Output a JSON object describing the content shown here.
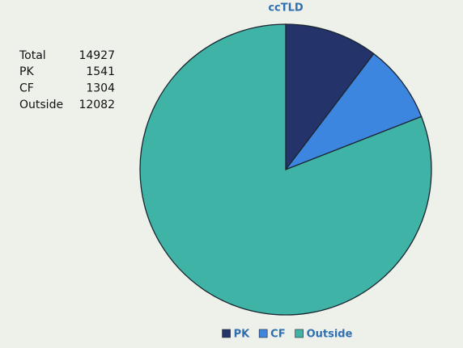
{
  "chart_data": {
    "type": "pie",
    "title": "ccTLD",
    "categories": [
      "PK",
      "CF",
      "Outside"
    ],
    "values": [
      1541,
      1304,
      12082
    ],
    "colors": [
      "#24346b",
      "#3d86e0",
      "#3fb3a6"
    ],
    "total_label": "Total",
    "total": 14927,
    "legend": "bottom"
  }
}
